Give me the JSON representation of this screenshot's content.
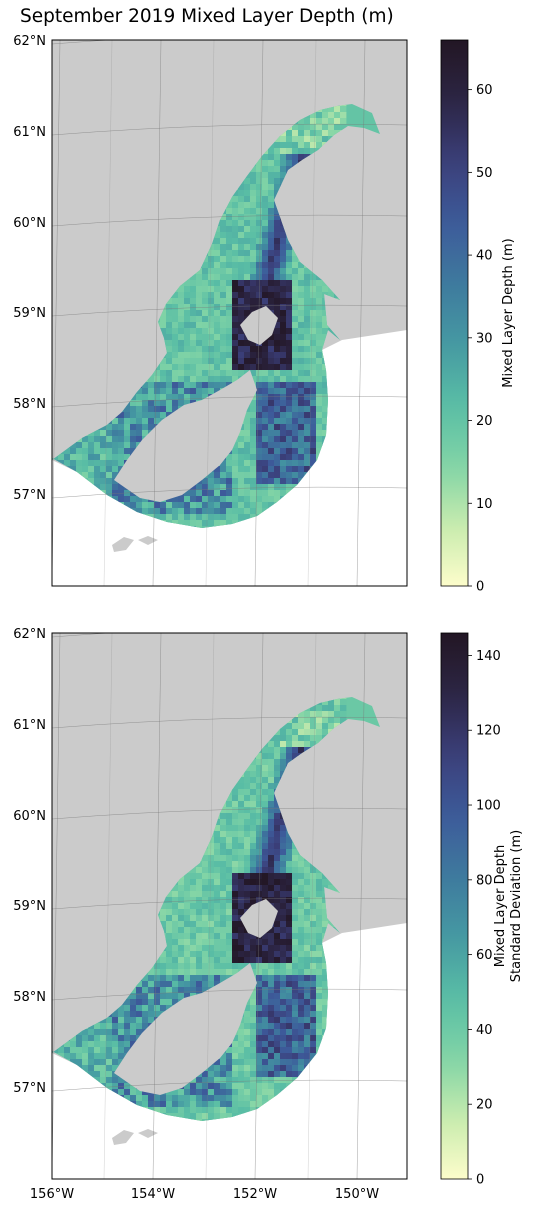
{
  "title": "September 2019 Mixed Layer Depth (m)",
  "colors": {
    "land": "#cbcbcb",
    "ramp": [
      "#fdfdcb",
      "#c8ebad",
      "#7fd3a6",
      "#59bda5",
      "#4599a2",
      "#3e799e",
      "#3d5a9a",
      "#3b3f7a",
      "#2c2544",
      "#221624"
    ]
  },
  "maps": [
    {
      "id": "mld",
      "lat_labels": [
        "62°N",
        "61°N",
        "60°N",
        "59°N",
        "58°N",
        "57°N"
      ],
      "colorbar": {
        "label": [
          "Mixed Layer Depth (m)"
        ],
        "vmin": 0,
        "vmax": 66,
        "ticks": [
          "0",
          "10",
          "20",
          "30",
          "40",
          "50",
          "60"
        ],
        "tick_values": [
          0,
          10,
          20,
          30,
          40,
          50,
          60
        ]
      },
      "stats": {
        "shelf_level": 0.3,
        "deep_level": 0.9
      }
    },
    {
      "id": "mld_std",
      "lat_labels": [
        "62°N",
        "61°N",
        "60°N",
        "59°N",
        "58°N",
        "57°N"
      ],
      "lon_labels": [
        "156°W",
        "154°W",
        "152°W",
        "150°W"
      ],
      "colorbar": {
        "label": [
          "Mixed Layer Depth",
          "Standard Deviation (m)"
        ],
        "vmin": 0,
        "vmax": 146,
        "ticks": [
          "0",
          "20",
          "40",
          "60",
          "80",
          "100",
          "120",
          "140"
        ],
        "tick_values": [
          0,
          20,
          40,
          60,
          80,
          100,
          120,
          140
        ]
      },
      "stats": {
        "shelf_level": 0.28,
        "deep_level": 0.92
      }
    }
  ]
}
